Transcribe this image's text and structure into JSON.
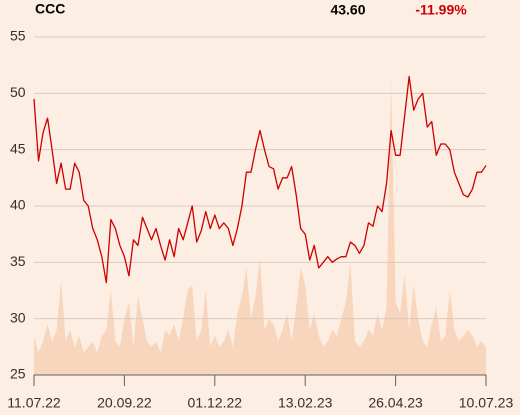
{
  "chart_data": {
    "type": "line",
    "title": "CCC",
    "price_label": "43.60",
    "change_label": "-11.99%",
    "categories": [
      "11.07.22",
      null,
      null,
      null,
      null,
      null,
      null,
      null,
      null,
      null,
      null,
      null,
      null,
      null,
      null,
      null,
      null,
      null,
      null,
      null,
      "20.09.22",
      null,
      null,
      null,
      null,
      null,
      null,
      null,
      null,
      null,
      null,
      null,
      null,
      null,
      null,
      null,
      null,
      null,
      null,
      null,
      "01.12.22",
      null,
      null,
      null,
      null,
      null,
      null,
      null,
      null,
      null,
      null,
      null,
      null,
      null,
      null,
      null,
      null,
      null,
      null,
      null,
      "13.02.23",
      null,
      null,
      null,
      null,
      null,
      null,
      null,
      null,
      null,
      null,
      null,
      null,
      null,
      null,
      null,
      null,
      null,
      null,
      null,
      "26.04.23",
      null,
      null,
      null,
      null,
      null,
      null,
      null,
      null,
      null,
      null,
      null,
      null,
      null,
      null,
      null,
      null,
      null,
      null,
      null,
      "10.07.23"
    ],
    "price": {
      "color": "#cc0000",
      "values": [
        49.5,
        44,
        46.5,
        47.8,
        45,
        42,
        43.8,
        41.5,
        41.5,
        43.8,
        43,
        40.5,
        40,
        38,
        37,
        35.5,
        33.2,
        38.8,
        38,
        36.5,
        35.5,
        33.8,
        37,
        36.5,
        39,
        38,
        37,
        38,
        36.5,
        35.2,
        37,
        35.5,
        38,
        37,
        38.5,
        40,
        36.8,
        37.8,
        39.5,
        38,
        39.2,
        38,
        38.5,
        38,
        36.5,
        38,
        40,
        43,
        43,
        45,
        46.7,
        45,
        43.5,
        43.3,
        41.5,
        42.5,
        42.5,
        43.5,
        41,
        38,
        37.5,
        35.2,
        36.5,
        34.5,
        35,
        35.5,
        35,
        35.3,
        35.5,
        35.5,
        36.8,
        36.5,
        35.8,
        36.5,
        38.5,
        38.2,
        40,
        39.5,
        42,
        46.7,
        44.5,
        44.5,
        48,
        51.5,
        48.5,
        49.5,
        50,
        47,
        47.5,
        44.5,
        45.5,
        45.5,
        45,
        43,
        42,
        41,
        40.8,
        41.5,
        43,
        43,
        43.6
      ]
    },
    "volume": {
      "color": "#f8d6bd",
      "values": [
        28.5,
        27,
        28,
        29.5,
        28,
        29,
        33.5,
        28,
        29,
        27.5,
        28.5,
        27,
        27.5,
        28,
        27,
        28.5,
        29,
        32.5,
        28,
        27.5,
        30,
        31.5,
        27.5,
        32,
        30,
        28,
        27.5,
        28,
        27,
        29,
        28.5,
        29.5,
        28,
        30,
        32.5,
        33,
        28,
        29,
        32.5,
        27.5,
        28.5,
        27.5,
        28,
        29,
        27.5,
        30.5,
        32,
        34.5,
        30,
        32,
        35.5,
        29,
        30,
        29.5,
        28,
        29,
        30.5,
        28,
        31,
        34.5,
        33,
        29,
        30.5,
        28.5,
        27.5,
        28,
        29,
        28.5,
        30,
        31.5,
        35,
        28,
        27.5,
        28,
        29,
        28.5,
        30.5,
        29,
        31,
        51.5,
        31.5,
        30.5,
        34,
        29,
        33,
        30,
        28,
        27.5,
        29.5,
        31,
        28,
        28.5,
        32.5,
        29,
        28,
        28.5,
        29,
        28.5,
        27.5,
        28,
        27.5
      ]
    },
    "ylim": [
      25,
      55
    ],
    "yticks": [
      25,
      30,
      35,
      40,
      45,
      50,
      55
    ],
    "grid": true
  }
}
